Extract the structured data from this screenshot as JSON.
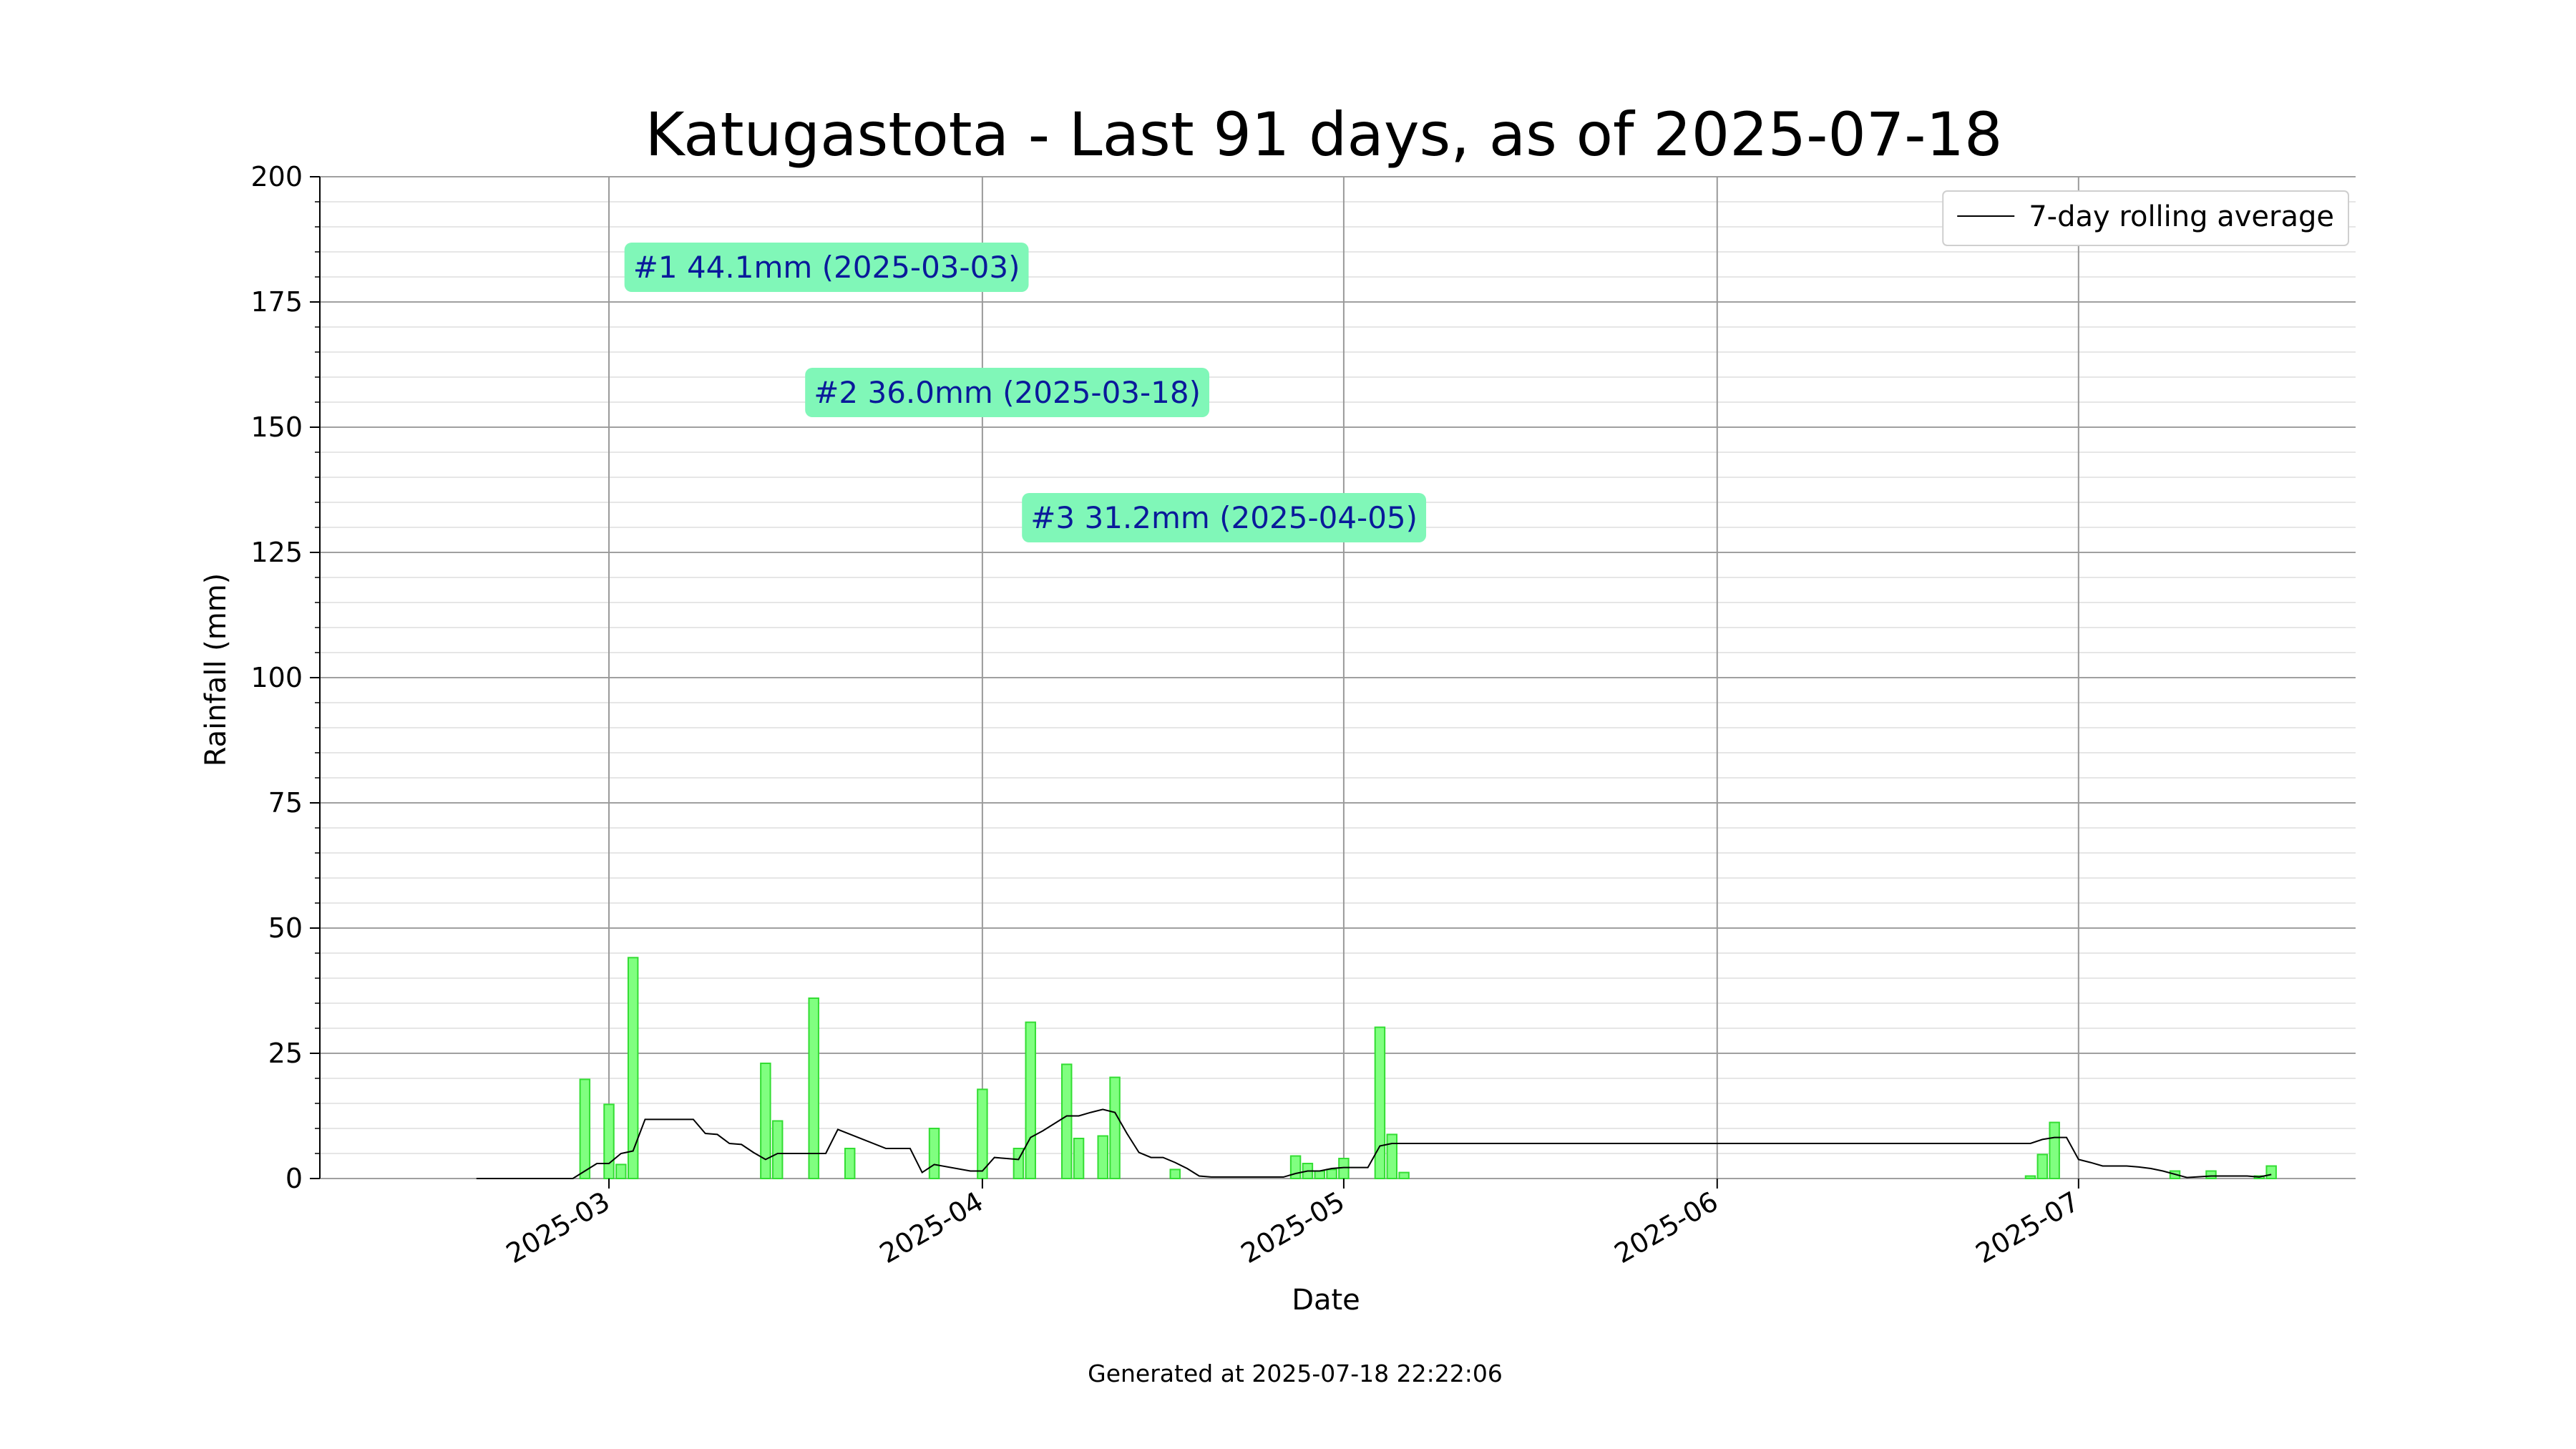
{
  "chart_data": {
    "type": "bar",
    "title": "Katugastota - Last 91 days, as of 2025-07-18",
    "xlabel": "Date",
    "ylabel": "Rainfall (mm)",
    "ylim": [
      0,
      200
    ],
    "yticks": [
      0,
      25,
      50,
      75,
      100,
      125,
      150,
      175,
      200
    ],
    "xlim": [
      "2025-02-05",
      "2025-07-24"
    ],
    "xticks": [
      "2025-03",
      "2025-04",
      "2025-05",
      "2025-06",
      "2025-07"
    ],
    "grid": true,
    "legend": {
      "position": "top-right",
      "entries": [
        "7-day rolling average"
      ]
    },
    "series": [
      {
        "type": "bar",
        "x": [
          "2025-02-27",
          "2025-03-01",
          "2025-03-02",
          "2025-03-03",
          "2025-03-14",
          "2025-03-15",
          "2025-03-18",
          "2025-03-21",
          "2025-03-28",
          "2025-04-01",
          "2025-04-04",
          "2025-04-05",
          "2025-04-08",
          "2025-04-09",
          "2025-04-11",
          "2025-04-12",
          "2025-04-17",
          "2025-04-27",
          "2025-04-28",
          "2025-04-29",
          "2025-04-30",
          "2025-05-01",
          "2025-05-04",
          "2025-05-05",
          "2025-05-06",
          "2025-06-27",
          "2025-06-28",
          "2025-06-29",
          "2025-07-09",
          "2025-07-12",
          "2025-07-16",
          "2025-07-17"
        ],
        "values": [
          19.8,
          14.8,
          2.8,
          44.1,
          23.0,
          11.5,
          36.0,
          6.0,
          10.0,
          17.8,
          6.0,
          31.2,
          22.8,
          8.0,
          8.5,
          20.2,
          1.8,
          4.5,
          3.0,
          1.5,
          1.8,
          4.0,
          30.2,
          8.8,
          1.2,
          0.5,
          4.8,
          11.2,
          1.5,
          1.5,
          0.5,
          2.5
        ]
      },
      {
        "name": "7-day rolling average",
        "type": "line",
        "x": [
          "2025-02-18",
          "2025-02-26",
          "2025-02-27",
          "2025-02-28",
          "2025-03-01",
          "2025-03-02",
          "2025-03-03",
          "2025-03-04",
          "2025-03-05",
          "2025-03-06",
          "2025-03-07",
          "2025-03-08",
          "2025-03-09",
          "2025-03-10",
          "2025-03-11",
          "2025-03-12",
          "2025-03-13",
          "2025-03-14",
          "2025-03-15",
          "2025-03-16",
          "2025-03-17",
          "2025-03-18",
          "2025-03-19",
          "2025-03-20",
          "2025-03-24",
          "2025-03-25",
          "2025-03-26",
          "2025-03-27",
          "2025-03-28",
          "2025-03-31",
          "2025-04-01",
          "2025-04-02",
          "2025-04-03",
          "2025-04-04",
          "2025-04-05",
          "2025-04-06",
          "2025-04-07",
          "2025-04-08",
          "2025-04-09",
          "2025-04-10",
          "2025-04-11",
          "2025-04-12",
          "2025-04-13",
          "2025-04-14",
          "2025-04-15",
          "2025-04-16",
          "2025-04-17",
          "2025-04-18",
          "2025-04-19",
          "2025-04-20",
          "2025-04-25",
          "2025-04-26",
          "2025-04-27",
          "2025-04-28",
          "2025-04-29",
          "2025-04-30",
          "2025-05-01",
          "2025-05-02",
          "2025-05-03",
          "2025-05-04",
          "2025-05-05",
          "2025-05-06",
          "2025-06-25",
          "2025-06-26",
          "2025-06-27",
          "2025-06-28",
          "2025-06-29",
          "2025-06-30",
          "2025-07-01",
          "2025-07-02",
          "2025-07-03",
          "2025-07-05",
          "2025-07-06",
          "2025-07-07",
          "2025-07-08",
          "2025-07-10",
          "2025-07-12",
          "2025-07-15",
          "2025-07-16",
          "2025-07-17"
        ],
        "values": [
          0,
          0,
          1.5,
          3.0,
          3.0,
          5.0,
          5.5,
          11.8,
          11.8,
          11.8,
          11.8,
          11.8,
          9.0,
          8.8,
          7.0,
          6.8,
          5.2,
          3.8,
          5.0,
          5.0,
          5.0,
          5.0,
          5.0,
          9.8,
          6.0,
          6.0,
          6.0,
          1.2,
          2.8,
          1.5,
          1.5,
          4.2,
          4.0,
          3.8,
          8.2,
          9.5,
          11.0,
          12.5,
          12.5,
          13.2,
          13.8,
          13.2,
          9.0,
          5.2,
          4.2,
          4.2,
          3.2,
          2.0,
          0.5,
          0.3,
          0.3,
          0.3,
          1.0,
          1.5,
          1.5,
          2.0,
          2.2,
          2.2,
          2.2,
          6.5,
          7.0,
          7.0,
          7.0,
          7.0,
          7.0,
          7.8,
          8.2,
          8.2,
          3.8,
          3.2,
          2.5,
          2.5,
          2.3,
          2.0,
          1.5,
          0.2,
          0.5,
          0.5,
          0.3,
          0.8
        ]
      }
    ],
    "annotations": [
      {
        "text": "#1 44.1mm (2025-03-03)",
        "x": "2025-03-03",
        "y": 182
      },
      {
        "text": "#2 36.0mm (2025-03-18)",
        "x": "2025-03-18",
        "y": 157
      },
      {
        "text": "#3 31.2mm (2025-04-05)",
        "x": "2025-04-05",
        "y": 132
      }
    ]
  },
  "footer": "Generated at 2025-07-18 22:22:06"
}
